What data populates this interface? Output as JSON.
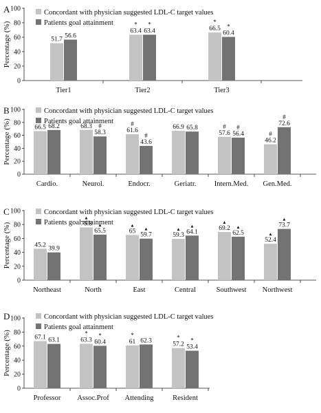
{
  "colors": {
    "concordant": "#c3c3c3",
    "goal": "#737373",
    "axis": "#222222"
  },
  "chart_data": [
    {
      "panel_label": "A",
      "type": "bar",
      "categories": [
        "Tier1",
        "Tier2",
        "Tier3"
      ],
      "ylabel": "Percentage (%)",
      "ylim": [
        0,
        100
      ],
      "yticks": [
        "0",
        "20",
        "40",
        "60",
        "80",
        "100"
      ],
      "legend": "top-left",
      "series": [
        {
          "name": "Concordant with physician suggested LDL-C target values",
          "values": [
            51.7,
            63.4,
            66.5
          ],
          "labels": [
            "51.7",
            "63.4",
            "66.5"
          ],
          "markers": [
            "",
            "*",
            "*"
          ]
        },
        {
          "name": "Patients goal attainment",
          "values": [
            56.6,
            63.4,
            60.4
          ],
          "labels": [
            "56.6",
            "63.4",
            "60.4"
          ],
          "markers": [
            "",
            "*",
            "*"
          ]
        }
      ]
    },
    {
      "panel_label": "B",
      "type": "bar",
      "categories": [
        "Cardio.",
        "Neurol.",
        "Endocr.",
        "Geriatr.",
        "Intern.Med.",
        "Gen.Med."
      ],
      "ylabel": "Percentage (%)",
      "ylim": [
        0,
        100
      ],
      "yticks": [
        "0",
        "20",
        "40",
        "60",
        "80",
        "100"
      ],
      "legend": "top-left",
      "series": [
        {
          "name": "Concordant with physician suggested LDL-C target values",
          "values": [
            66.5,
            68.3,
            61.6,
            66.9,
            57.6,
            46.2
          ],
          "labels": [
            "66.5",
            "68.3",
            "61.6",
            "66.9",
            "57.6",
            "46.2"
          ],
          "markers": [
            "",
            "",
            "#",
            "",
            "#",
            "#"
          ]
        },
        {
          "name": "Patients goal attainment",
          "values": [
            68.2,
            58.3,
            43.6,
            65.8,
            56.4,
            72.6
          ],
          "labels": [
            "68.2",
            "58.3",
            "43.6",
            "65.8",
            "56.4",
            "72.6"
          ],
          "markers": [
            "",
            "#",
            "#",
            "",
            "#",
            "#"
          ]
        }
      ]
    },
    {
      "panel_label": "C",
      "type": "bar",
      "categories": [
        "Northeast",
        "North",
        "East",
        "Central",
        "Southwest",
        "Northwest"
      ],
      "ylabel": "Percentage (%)",
      "ylim": [
        0,
        100
      ],
      "yticks": [
        "0",
        "20",
        "40",
        "60",
        "80",
        "100"
      ],
      "legend": "top-left",
      "series": [
        {
          "name": "Concordant with physician suggested LDL-C target values",
          "values": [
            45.2,
            75.8,
            65.0,
            59.3,
            69.2,
            52.4
          ],
          "labels": [
            "45.2",
            "75.8",
            "65",
            "59.3",
            "69.2",
            "52.4"
          ],
          "markers": [
            "",
            "▲",
            "▲",
            "▲",
            "▲",
            "▲"
          ]
        },
        {
          "name": "Patients goal attainment",
          "values": [
            39.9,
            65.5,
            59.7,
            64.1,
            62.5,
            73.7
          ],
          "labels": [
            "39.9",
            "65.5",
            "59.7",
            "64.1",
            "62.5",
            "73.7"
          ],
          "markers": [
            "",
            "▲",
            "▲",
            "▲",
            "▲",
            "▲"
          ]
        }
      ]
    },
    {
      "panel_label": "D",
      "type": "bar",
      "categories": [
        "Professor",
        "Assoc.Prof",
        "Attending",
        "Resident"
      ],
      "ylabel": "Percentage (%)",
      "ylim": [
        0,
        100
      ],
      "yticks": [
        "0",
        "20",
        "40",
        "60",
        "80",
        "100"
      ],
      "legend": "top-left",
      "series": [
        {
          "name": "Concordant with physician suggested LDL-C target values",
          "values": [
            67.1,
            63.3,
            61.0,
            57.2
          ],
          "labels": [
            "67.1",
            "63.3",
            "61",
            "57.2"
          ],
          "markers": [
            "",
            "*",
            "*",
            "*"
          ]
        },
        {
          "name": "Patients goal attainment",
          "values": [
            63.1,
            60.4,
            62.3,
            53.4
          ],
          "labels": [
            "63.1",
            "60.4",
            "62.3",
            "53.4"
          ],
          "markers": [
            "",
            "*",
            "",
            "*"
          ]
        }
      ]
    }
  ]
}
